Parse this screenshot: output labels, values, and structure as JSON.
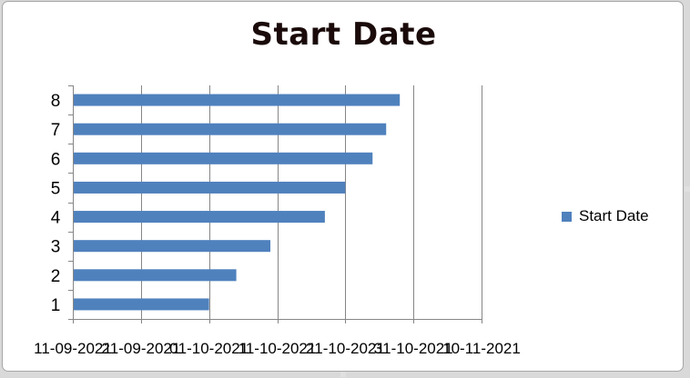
{
  "chart_data": {
    "type": "bar",
    "orientation": "horizontal",
    "title": "Start Date",
    "categories": [
      "1",
      "2",
      "3",
      "4",
      "5",
      "6",
      "7",
      "8"
    ],
    "series": [
      {
        "name": "Start Date",
        "values": [
          "2021-10-01",
          "2021-10-05",
          "2021-10-10",
          "2021-10-18",
          "2021-10-21",
          "2021-10-25",
          "2021-10-27",
          "2021-10-29"
        ]
      }
    ],
    "xlim": [
      "2021-09-11",
      "2021-11-10"
    ],
    "x_ticks": [
      "2021-09-11",
      "2021-09-21",
      "2021-10-01",
      "2021-10-11",
      "2021-10-21",
      "2021-10-31",
      "2021-11-10"
    ],
    "x_tick_labels": [
      "11-09-2021",
      "21-09-2021",
      "01-10-2021",
      "11-10-2021",
      "21-10-2021",
      "31-10-2021",
      "10-11-2021"
    ],
    "grid": true,
    "legend": "right",
    "bar_color": "#4f81bd"
  }
}
